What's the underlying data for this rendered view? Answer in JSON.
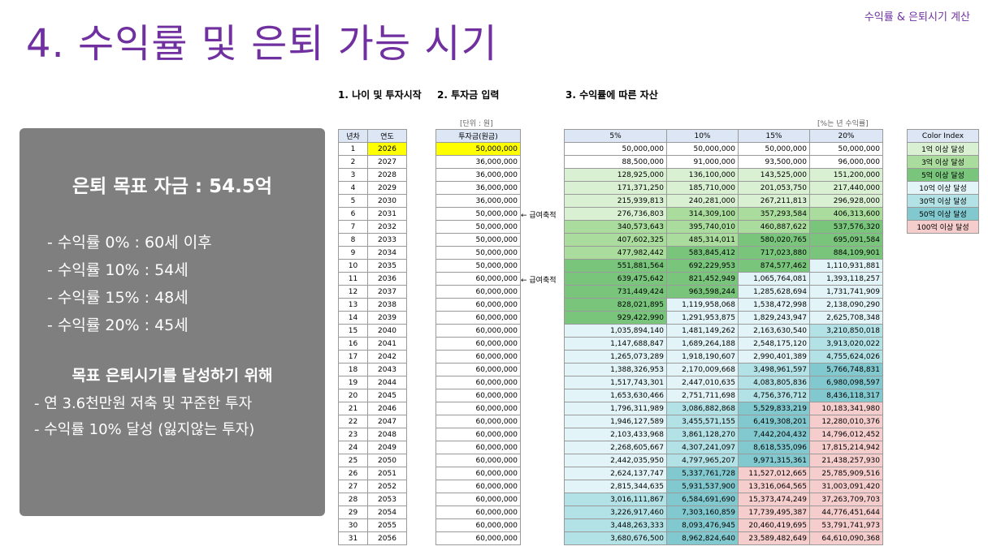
{
  "header_tag": "수익률 & 은퇴시기 계산",
  "page_title": "4. 수익률 및 은퇴 가능 시기",
  "summary": {
    "goal": "은퇴 목표 자금 : 54.5억",
    "rates": [
      "- 수익률   0% : 60세 이후",
      "- 수익률 10% : 54세",
      "- 수익률 15% : 48세",
      "- 수익률 20% : 45세"
    ],
    "plan_title": "목표 은퇴시기를 달성하기 위해",
    "plan_items": [
      "- 연 3.6천만원 저축 및 꾸준한 투자",
      "- 수익률 10% 달성 (잃지않는 투자)"
    ]
  },
  "sections": {
    "s1": "1. 나이 및 투자시작",
    "s2": "2. 투자금 입력",
    "s3": "3. 수익률에 따른 자산"
  },
  "notes": {
    "unit": "[단위 : 원]",
    "rate_note": "[%는 년 수익률]",
    "salary_saving": "← 급여축적"
  },
  "table1": {
    "headers": [
      "년차",
      "연도"
    ],
    "rows": [
      [
        "1",
        "2026"
      ],
      [
        "2",
        "2027"
      ],
      [
        "3",
        "2028"
      ],
      [
        "4",
        "2029"
      ],
      [
        "5",
        "2030"
      ],
      [
        "6",
        "2031"
      ],
      [
        "7",
        "2032"
      ],
      [
        "8",
        "2033"
      ],
      [
        "9",
        "2034"
      ],
      [
        "10",
        "2035"
      ],
      [
        "11",
        "2036"
      ],
      [
        "12",
        "2037"
      ],
      [
        "13",
        "2038"
      ],
      [
        "14",
        "2039"
      ],
      [
        "15",
        "2040"
      ],
      [
        "16",
        "2041"
      ],
      [
        "17",
        "2042"
      ],
      [
        "18",
        "2043"
      ],
      [
        "19",
        "2044"
      ],
      [
        "20",
        "2045"
      ],
      [
        "21",
        "2046"
      ],
      [
        "22",
        "2047"
      ],
      [
        "23",
        "2048"
      ],
      [
        "24",
        "2049"
      ],
      [
        "25",
        "2050"
      ],
      [
        "26",
        "2051"
      ],
      [
        "27",
        "2052"
      ],
      [
        "28",
        "2053"
      ],
      [
        "29",
        "2054"
      ],
      [
        "30",
        "2055"
      ],
      [
        "31",
        "2056"
      ]
    ]
  },
  "table2": {
    "header": "투자금(원금)",
    "values": [
      "50,000,000",
      "36,000,000",
      "36,000,000",
      "36,000,000",
      "36,000,000",
      "50,000,000",
      "50,000,000",
      "50,000,000",
      "50,000,000",
      "50,000,000",
      "60,000,000",
      "60,000,000",
      "60,000,000",
      "60,000,000",
      "60,000,000",
      "60,000,000",
      "60,000,000",
      "60,000,000",
      "60,000,000",
      "60,000,000",
      "60,000,000",
      "60,000,000",
      "60,000,000",
      "60,000,000",
      "60,000,000",
      "60,000,000",
      "60,000,000",
      "60,000,000",
      "60,000,000",
      "60,000,000",
      "60,000,000"
    ]
  },
  "table3": {
    "headers": [
      "5%",
      "10%",
      "15%",
      "20%"
    ],
    "rows": [
      [
        "50,000,000",
        "50,000,000",
        "50,000,000",
        "50,000,000"
      ],
      [
        "88,500,000",
        "91,000,000",
        "93,500,000",
        "96,000,000"
      ],
      [
        "128,925,000",
        "136,100,000",
        "143,525,000",
        "151,200,000"
      ],
      [
        "171,371,250",
        "185,710,000",
        "201,053,750",
        "217,440,000"
      ],
      [
        "215,939,813",
        "240,281,000",
        "267,211,813",
        "296,928,000"
      ],
      [
        "276,736,803",
        "314,309,100",
        "357,293,584",
        "406,313,600"
      ],
      [
        "340,573,643",
        "395,740,010",
        "460,887,622",
        "537,576,320"
      ],
      [
        "407,602,325",
        "485,314,011",
        "580,020,765",
        "695,091,584"
      ],
      [
        "477,982,442",
        "583,845,412",
        "717,023,880",
        "884,109,901"
      ],
      [
        "551,881,564",
        "692,229,953",
        "874,577,462",
        "1,110,931,881"
      ],
      [
        "639,475,642",
        "821,452,949",
        "1,065,764,081",
        "1,393,118,257"
      ],
      [
        "731,449,424",
        "963,598,244",
        "1,285,628,694",
        "1,731,741,909"
      ],
      [
        "828,021,895",
        "1,119,958,068",
        "1,538,472,998",
        "2,138,090,290"
      ],
      [
        "929,422,990",
        "1,291,953,875",
        "1,829,243,947",
        "2,625,708,348"
      ],
      [
        "1,035,894,140",
        "1,481,149,262",
        "2,163,630,540",
        "3,210,850,018"
      ],
      [
        "1,147,688,847",
        "1,689,264,188",
        "2,548,175,120",
        "3,913,020,022"
      ],
      [
        "1,265,073,289",
        "1,918,190,607",
        "2,990,401,389",
        "4,755,624,026"
      ],
      [
        "1,388,326,953",
        "2,170,009,668",
        "3,498,961,597",
        "5,766,748,831"
      ],
      [
        "1,517,743,301",
        "2,447,010,635",
        "4,083,805,836",
        "6,980,098,597"
      ],
      [
        "1,653,630,466",
        "2,751,711,698",
        "4,756,376,712",
        "8,436,118,317"
      ],
      [
        "1,796,311,989",
        "3,086,882,868",
        "5,529,833,219",
        "10,183,341,980"
      ],
      [
        "1,946,127,589",
        "3,455,571,155",
        "6,419,308,201",
        "12,280,010,376"
      ],
      [
        "2,103,433,968",
        "3,861,128,270",
        "7,442,204,432",
        "14,796,012,452"
      ],
      [
        "2,268,605,667",
        "4,307,241,097",
        "8,618,535,096",
        "17,815,214,942"
      ],
      [
        "2,442,035,950",
        "4,797,965,207",
        "9,971,315,361",
        "21,438,257,930"
      ],
      [
        "2,624,137,747",
        "5,337,761,728",
        "11,527,012,665",
        "25,785,909,516"
      ],
      [
        "2,815,344,635",
        "5,931,537,900",
        "13,316,064,565",
        "31,003,091,420"
      ],
      [
        "3,016,111,867",
        "6,584,691,690",
        "15,373,474,249",
        "37,263,709,703"
      ],
      [
        "3,226,917,460",
        "7,303,160,859",
        "17,739,495,387",
        "44,776,451,644"
      ],
      [
        "3,448,263,333",
        "8,093,476,945",
        "20,460,419,695",
        "53,791,741,973"
      ],
      [
        "3,680,676,500",
        "8,962,824,640",
        "23,589,482,649",
        "64,610,090,368"
      ]
    ]
  },
  "color_index": {
    "header": "Color Index",
    "items": [
      "1억 이상 달성",
      "3억 이상 달성",
      "5억 이상 달성",
      "10억 이상 달성",
      "30억 이상 달성",
      "50억 이상 달성",
      "100억 이상 달성"
    ],
    "colors": [
      "#d9f0d3",
      "#a9dc9d",
      "#78c57b",
      "#e2f4f7",
      "#b3e2e6",
      "#82c9cf",
      "#f6cdcd"
    ]
  }
}
